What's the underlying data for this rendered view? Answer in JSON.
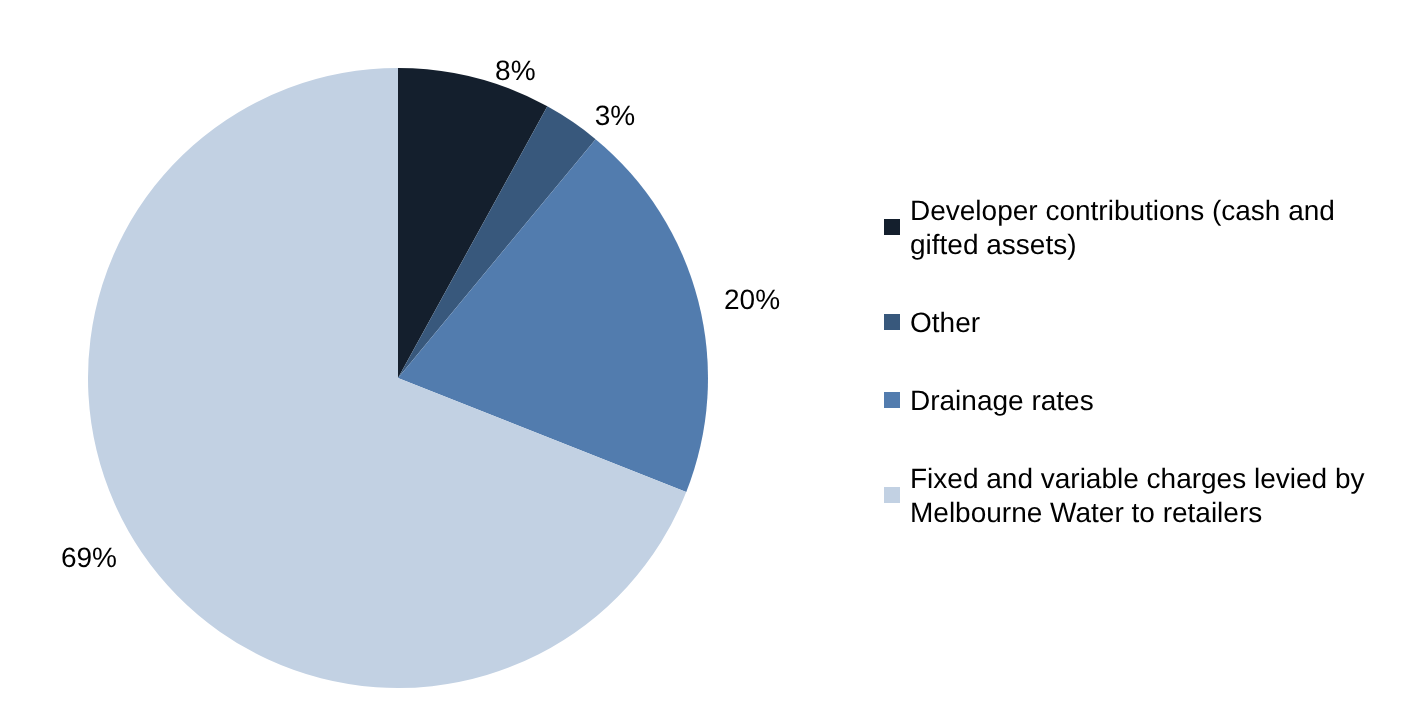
{
  "chart_data": {
    "type": "pie",
    "categories": [
      "Developer contributions (cash and gifted assets)",
      "Other",
      "Drainage rates",
      "Fixed and variable charges levied by Melbourne Water to retailers"
    ],
    "values": [
      8,
      3,
      20,
      69
    ],
    "colors": [
      "#141f2d",
      "#38587c",
      "#527cae",
      "#c2d1e3"
    ],
    "value_labels": [
      "8%",
      "3%",
      "20%",
      "69%"
    ],
    "legend": "right"
  }
}
